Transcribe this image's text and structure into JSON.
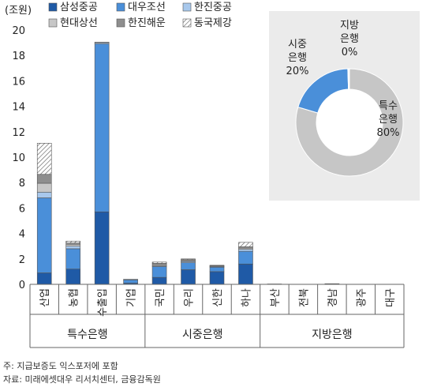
{
  "chart_data": {
    "type": "bar",
    "stacked": true,
    "ylabel": "(조원)",
    "ylim": [
      0,
      20
    ],
    "yticks": [
      0,
      2,
      4,
      6,
      8,
      10,
      12,
      14,
      16,
      18,
      20
    ],
    "categories": [
      "산업",
      "농협",
      "수출입",
      "기업",
      "국민",
      "우리",
      "신한",
      "하나",
      "부산",
      "전북",
      "경남",
      "광주",
      "대구"
    ],
    "groups": [
      {
        "label": "특수은행",
        "count": 4
      },
      {
        "label": "시중은행",
        "count": 4
      },
      {
        "label": "지방은행",
        "count": 5
      }
    ],
    "series": [
      {
        "name": "삼성중공",
        "color": "#1f5aa6",
        "pattern": "solid",
        "values": [
          0.9,
          1.2,
          5.7,
          0.1,
          0.55,
          1.15,
          1.0,
          1.6,
          0.03,
          0,
          0.03,
          0,
          0
        ]
      },
      {
        "name": "대우조선",
        "color": "#4a8fd9",
        "pattern": "solid",
        "values": [
          5.9,
          1.6,
          13.2,
          0.25,
          0.85,
          0.55,
          0.35,
          1.0,
          0,
          0,
          0.02,
          0,
          0
        ]
      },
      {
        "name": "한진중공",
        "color": "#a8c8ec",
        "pattern": "solid",
        "values": [
          0.45,
          0.2,
          0.1,
          0.05,
          0.05,
          0.1,
          0.05,
          0.15,
          0,
          0,
          0,
          0,
          0
        ]
      },
      {
        "name": "현대상선",
        "color": "#c7c7c7",
        "pattern": "solid",
        "values": [
          0.7,
          0.15,
          0.05,
          0,
          0.1,
          0.05,
          0.05,
          0.1,
          0,
          0,
          0,
          0,
          0
        ]
      },
      {
        "name": "한진해운",
        "color": "#8e8e8e",
        "pattern": "solid",
        "values": [
          0.7,
          0.1,
          0,
          0,
          0.1,
          0.1,
          0.05,
          0.1,
          0,
          0,
          0,
          0,
          0
        ]
      },
      {
        "name": "동국제강",
        "color": "#ffffff",
        "pattern": "hatch",
        "values": [
          2.45,
          0.15,
          0,
          0,
          0.1,
          0.05,
          0,
          0.35,
          0,
          0,
          0,
          0,
          0
        ]
      }
    ],
    "pie": {
      "type": "donut",
      "slices": [
        {
          "label": "특수\n은행",
          "value": 80,
          "display": "80%",
          "color": "#c6c6c6"
        },
        {
          "label": "시중\n은행",
          "value": 20,
          "display": "20%",
          "color": "#4a8fd9"
        },
        {
          "label": "지방\n은행",
          "value": 0.5,
          "display": "0%",
          "color": "#ffffff"
        }
      ]
    }
  },
  "notes": {
    "note1": "주: 지급보증도 익스포저에 포함",
    "note2": "자료: 미래에셋대우 리서치센터, 금융감독원"
  }
}
